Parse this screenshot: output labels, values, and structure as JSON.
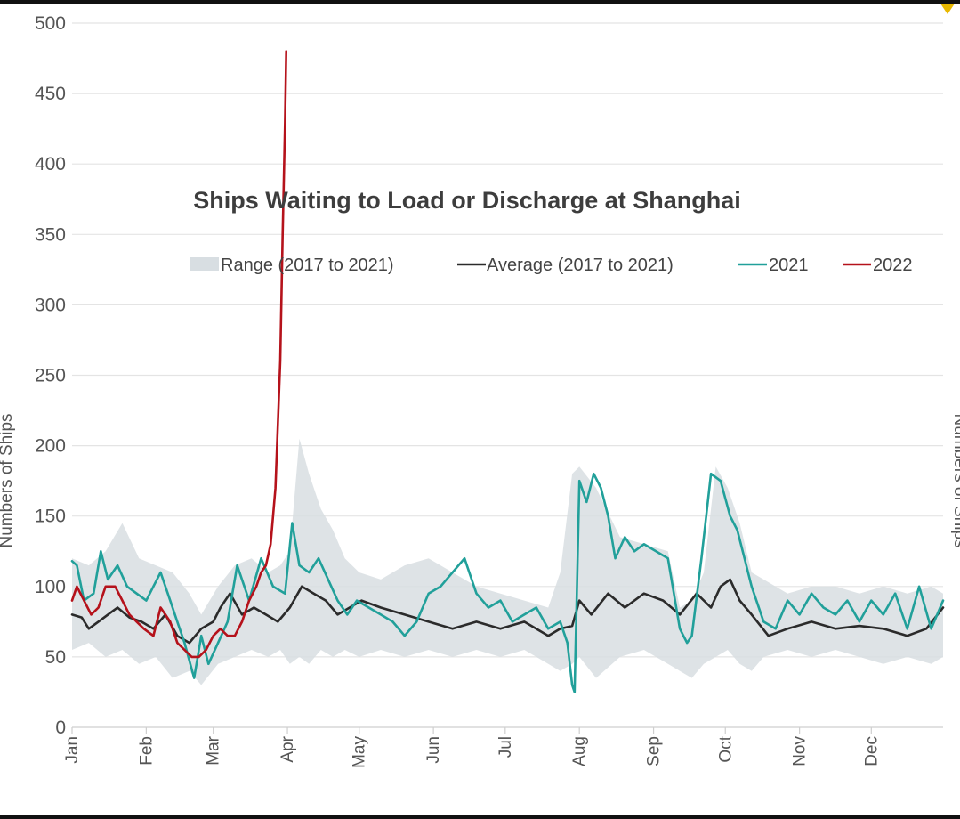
{
  "chart_data": {
    "type": "line",
    "title": "Ships Waiting to Load or Discharge at Shanghai",
    "ylabel": "Numbers of Ships",
    "ylabel_right": "Numbers of Ships",
    "ylim": [
      0,
      500
    ],
    "yticks": [
      0,
      50,
      100,
      150,
      200,
      250,
      300,
      350,
      400,
      450,
      500
    ],
    "x_unit": "day of year",
    "xlim": [
      1,
      365
    ],
    "month_labels": [
      {
        "label": "Jan",
        "day": 1
      },
      {
        "label": "Feb",
        "day": 32
      },
      {
        "label": "Mar",
        "day": 60
      },
      {
        "label": "Apr",
        "day": 91
      },
      {
        "label": "May",
        "day": 121
      },
      {
        "label": "Jun",
        "day": 152
      },
      {
        "label": "Jul",
        "day": 182
      },
      {
        "label": "Aug",
        "day": 213
      },
      {
        "label": "Sep",
        "day": 244
      },
      {
        "label": "Oct",
        "day": 274
      },
      {
        "label": "Nov",
        "day": 305
      },
      {
        "label": "Dec",
        "day": 335
      }
    ],
    "grid": true,
    "legend_position": "top-right",
    "legend": [
      {
        "label": "Range (2017 to 2021)",
        "kind": "area",
        "color": "#d8dee2"
      },
      {
        "label": "Average (2017 to 2021)",
        "kind": "line",
        "color": "#2b2b2b"
      },
      {
        "label": "2021",
        "kind": "line",
        "color": "#21a09a"
      },
      {
        "label": "2022",
        "kind": "line",
        "color": "#b5121b"
      }
    ],
    "range": {
      "name": "Range (2017 to 2021)",
      "color": "#d8dee2",
      "x": [
        1,
        8,
        15,
        22,
        29,
        36,
        43,
        50,
        55,
        62,
        69,
        76,
        83,
        88,
        92,
        96,
        100,
        105,
        110,
        115,
        121,
        130,
        140,
        150,
        160,
        170,
        180,
        190,
        200,
        205,
        210,
        213,
        220,
        230,
        240,
        250,
        255,
        260,
        265,
        270,
        275,
        280,
        285,
        290,
        300,
        310,
        320,
        330,
        340,
        350,
        360,
        365
      ],
      "low": [
        55,
        60,
        50,
        55,
        45,
        50,
        35,
        40,
        30,
        45,
        50,
        55,
        50,
        55,
        45,
        50,
        45,
        55,
        50,
        55,
        50,
        55,
        50,
        55,
        50,
        55,
        50,
        55,
        45,
        40,
        45,
        50,
        35,
        50,
        55,
        45,
        40,
        35,
        45,
        50,
        55,
        45,
        40,
        50,
        55,
        50,
        55,
        50,
        45,
        50,
        45,
        50
      ],
      "high": [
        120,
        115,
        125,
        145,
        120,
        115,
        110,
        95,
        80,
        100,
        115,
        120,
        110,
        115,
        125,
        205,
        180,
        155,
        140,
        120,
        110,
        105,
        115,
        120,
        110,
        100,
        95,
        90,
        85,
        110,
        180,
        185,
        170,
        135,
        130,
        125,
        85,
        90,
        110,
        185,
        170,
        145,
        110,
        105,
        95,
        100,
        100,
        95,
        100,
        95,
        100,
        95
      ]
    },
    "series": [
      {
        "name": "Average (2017 to 2021)",
        "color": "#2b2b2b",
        "x": [
          1,
          5,
          8,
          12,
          16,
          20,
          25,
          30,
          35,
          40,
          45,
          50,
          55,
          60,
          63,
          67,
          72,
          77,
          82,
          87,
          92,
          97,
          102,
          107,
          112,
          117,
          122,
          130,
          140,
          150,
          160,
          170,
          180,
          190,
          200,
          205,
          210,
          213,
          218,
          225,
          232,
          240,
          248,
          255,
          262,
          268,
          272,
          276,
          280,
          285,
          292,
          300,
          310,
          320,
          330,
          340,
          350,
          358,
          365
        ],
        "y": [
          80,
          78,
          70,
          75,
          80,
          85,
          78,
          75,
          70,
          80,
          65,
          60,
          70,
          75,
          85,
          95,
          80,
          85,
          80,
          75,
          85,
          100,
          95,
          90,
          80,
          85,
          90,
          85,
          80,
          75,
          70,
          75,
          70,
          75,
          65,
          70,
          72,
          90,
          80,
          95,
          85,
          95,
          90,
          80,
          95,
          85,
          100,
          105,
          90,
          80,
          65,
          70,
          75,
          70,
          72,
          70,
          65,
          70,
          85
        ]
      },
      {
        "name": "2021",
        "color": "#21a09a",
        "x": [
          1,
          3,
          6,
          10,
          13,
          16,
          20,
          24,
          28,
          32,
          35,
          38,
          42,
          45,
          48,
          52,
          55,
          58,
          62,
          66,
          70,
          75,
          80,
          85,
          90,
          93,
          96,
          100,
          104,
          108,
          112,
          116,
          120,
          125,
          130,
          135,
          140,
          145,
          150,
          155,
          160,
          165,
          170,
          175,
          180,
          185,
          190,
          195,
          200,
          205,
          208,
          210,
          211,
          213,
          216,
          219,
          222,
          225,
          228,
          232,
          236,
          240,
          245,
          250,
          255,
          258,
          260,
          264,
          268,
          272,
          276,
          279,
          282,
          285,
          290,
          295,
          300,
          305,
          310,
          315,
          320,
          325,
          330,
          335,
          340,
          345,
          350,
          355,
          360,
          365
        ],
        "y": [
          118,
          115,
          90,
          95,
          125,
          105,
          115,
          100,
          95,
          90,
          100,
          110,
          90,
          75,
          60,
          35,
          65,
          45,
          60,
          75,
          115,
          90,
          120,
          100,
          95,
          145,
          115,
          110,
          120,
          105,
          90,
          80,
          90,
          85,
          80,
          75,
          65,
          75,
          95,
          100,
          110,
          120,
          95,
          85,
          90,
          75,
          80,
          85,
          70,
          75,
          60,
          30,
          25,
          175,
          160,
          180,
          170,
          150,
          120,
          135,
          125,
          130,
          125,
          120,
          70,
          60,
          65,
          120,
          180,
          175,
          150,
          140,
          120,
          100,
          75,
          70,
          90,
          80,
          95,
          85,
          80,
          90,
          75,
          90,
          80,
          95,
          70,
          100,
          70,
          90
        ]
      },
      {
        "name": "2022",
        "color": "#b5121b",
        "x": [
          1,
          3,
          6,
          9,
          12,
          15,
          19,
          22,
          25,
          28,
          31,
          35,
          38,
          42,
          45,
          48,
          51,
          54,
          57,
          60,
          63,
          66,
          69,
          72,
          75,
          78,
          80,
          82,
          84,
          86,
          88,
          89,
          90,
          90.5
        ],
        "y": [
          90,
          100,
          90,
          80,
          85,
          100,
          100,
          90,
          80,
          75,
          70,
          65,
          85,
          75,
          60,
          55,
          50,
          50,
          55,
          65,
          70,
          65,
          65,
          75,
          90,
          100,
          110,
          115,
          130,
          170,
          260,
          350,
          430,
          480
        ]
      }
    ]
  }
}
